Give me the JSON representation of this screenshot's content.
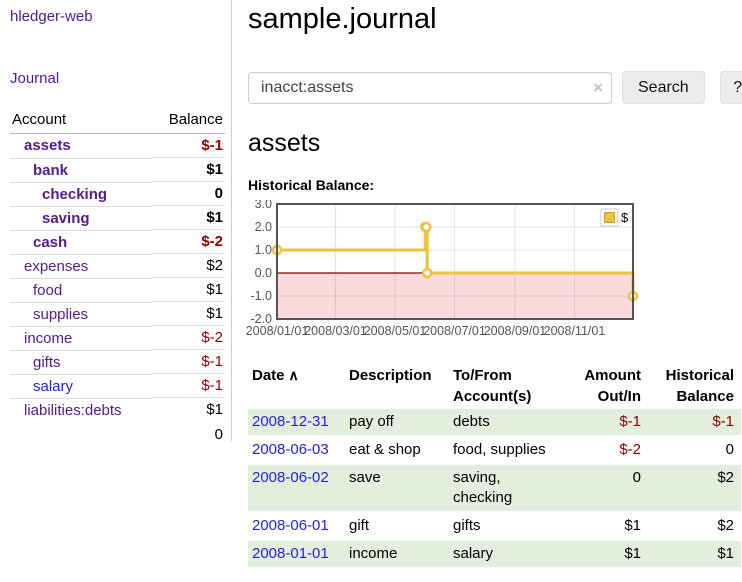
{
  "app": {
    "brand": "hledger-web"
  },
  "colors": {
    "link_purple": "#551a8b",
    "link_blue": "#2323d6",
    "negative_red": "#8b0000",
    "row_green": "#e3eedd",
    "chart_gold": "#edc240",
    "chart_negative_region": "#fadada",
    "chart_zero_line": "#8b0000"
  },
  "sidebar": {
    "nav": {
      "journal_label": "Journal"
    },
    "table": {
      "account_header": "Account",
      "balance_header": "Balance",
      "rows": [
        {
          "account": "assets",
          "balance": "$-1",
          "depth": 1,
          "bold": true,
          "negative": true
        },
        {
          "account": "bank",
          "balance": "$1",
          "depth": 2,
          "bold": true,
          "negative": false
        },
        {
          "account": "checking",
          "balance": "0",
          "depth": 3,
          "bold": true,
          "negative": false
        },
        {
          "account": "saving",
          "balance": "$1",
          "depth": 3,
          "bold": true,
          "negative": false
        },
        {
          "account": "cash",
          "balance": "$-2",
          "depth": 2,
          "bold": true,
          "negative": true
        },
        {
          "account": "expenses",
          "balance": "$2",
          "depth": 1,
          "bold": false,
          "negative": false
        },
        {
          "account": "food",
          "balance": "$1",
          "depth": 2,
          "bold": false,
          "negative": false
        },
        {
          "account": "supplies",
          "balance": "$1",
          "depth": 2,
          "bold": false,
          "negative": false
        },
        {
          "account": "income",
          "balance": "$-2",
          "depth": 1,
          "bold": false,
          "negative": true
        },
        {
          "account": "gifts",
          "balance": "$-1",
          "depth": 2,
          "bold": false,
          "negative": true
        },
        {
          "account": "salary",
          "balance": "$-1",
          "depth": 2,
          "bold": false,
          "negative": true,
          "link_blue": true
        },
        {
          "account": "liabilities:debts",
          "balance": "$1",
          "depth": 1,
          "bold": false,
          "negative": false
        }
      ],
      "total": "0"
    }
  },
  "main": {
    "title": "sample.journal",
    "search": {
      "value": "inacct:assets",
      "clear_icon": "×",
      "button_label": "Search",
      "help_label": "?"
    },
    "account_heading": "assets",
    "chart_label": "Historical Balance:"
  },
  "chart_data": {
    "type": "line",
    "title": "Historical Balance",
    "step": true,
    "legend": {
      "label": "$",
      "position": "top-right"
    },
    "grid": true,
    "ylim": [
      -2,
      3
    ],
    "xlim_days": [
      0,
      365
    ],
    "y_ticks": [
      {
        "value": 3,
        "label": "3.0"
      },
      {
        "value": 2,
        "label": "2.0"
      },
      {
        "value": 1,
        "label": "1.0"
      },
      {
        "value": 0,
        "label": "0.0"
      },
      {
        "value": -1,
        "label": "-1.0"
      },
      {
        "value": -2,
        "label": "-2.0"
      }
    ],
    "x_ticks": [
      {
        "day": 0,
        "label": "2008/01/01"
      },
      {
        "day": 60,
        "label": "2008/03/01"
      },
      {
        "day": 121,
        "label": "2008/05/01"
      },
      {
        "day": 182,
        "label": "2008/07/01"
      },
      {
        "day": 244,
        "label": "2008/09/01"
      },
      {
        "day": 305,
        "label": "2008/11/01"
      }
    ],
    "series": [
      {
        "name": "$",
        "color": "#edc240",
        "points": [
          {
            "date": "2008-01-01",
            "day": 0,
            "value": 1
          },
          {
            "date": "2008-06-01",
            "day": 152,
            "value": 2
          },
          {
            "date": "2008-06-02",
            "day": 153,
            "value": 2
          },
          {
            "date": "2008-06-03",
            "day": 154,
            "value": 0
          },
          {
            "date": "2008-12-31",
            "day": 365,
            "value": -1
          }
        ]
      }
    ]
  },
  "register": {
    "columns": {
      "date": "Date",
      "sort_icon": "∧",
      "description": "Description",
      "accounts": "To/From Account(s)",
      "amount": "Amount Out/In",
      "balance": "Historical Balance"
    },
    "rows": [
      {
        "date": "2008-12-31",
        "description": "pay off",
        "accounts": "debts",
        "amount": "$-1",
        "amount_neg": true,
        "balance": "$-1",
        "balance_neg": true
      },
      {
        "date": "2008-06-03",
        "description": "eat & shop",
        "accounts": "food, supplies",
        "amount": "$-2",
        "amount_neg": true,
        "balance": "0",
        "balance_neg": false
      },
      {
        "date": "2008-06-02",
        "description": "save",
        "accounts": "saving, checking",
        "amount": "0",
        "amount_neg": false,
        "balance": "$2",
        "balance_neg": false
      },
      {
        "date": "2008-06-01",
        "description": "gift",
        "accounts": "gifts",
        "amount": "$1",
        "amount_neg": false,
        "balance": "$2",
        "balance_neg": false
      },
      {
        "date": "2008-01-01",
        "description": "income",
        "accounts": "salary",
        "amount": "$1",
        "amount_neg": false,
        "balance": "$1",
        "balance_neg": false
      }
    ]
  }
}
